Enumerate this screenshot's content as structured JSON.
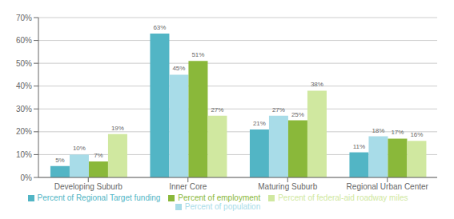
{
  "chart_data": {
    "type": "bar",
    "categories": [
      "Developing Suburb",
      "Inner Core",
      "Maturing Suburb",
      "Regional Urban Center"
    ],
    "series": [
      {
        "name": "Percent of Regional Target funding",
        "color": "#52b5c5",
        "values": [
          5,
          63,
          21,
          11
        ],
        "value_labels": [
          "5%",
          "63%",
          "21%",
          "11%"
        ]
      },
      {
        "name": "Percent of population",
        "color": "#a8dce8",
        "values": [
          10,
          45,
          27,
          18
        ],
        "value_labels": [
          "10%",
          "45%",
          "27%",
          "18%"
        ]
      },
      {
        "name": "Percent of employment",
        "color": "#8ab83a",
        "values": [
          7,
          51,
          25,
          17
        ],
        "value_labels": [
          "7%",
          "51%",
          "25%",
          "17%"
        ]
      },
      {
        "name": "Percent of federal-aid roadway miles",
        "color": "#d0e8a0",
        "values": [
          19,
          27,
          38,
          16
        ],
        "value_labels": [
          "19%",
          "27%",
          "38%",
          "16%"
        ]
      }
    ],
    "ylim": [
      0,
      70
    ],
    "yticks": [
      {
        "value": 0,
        "label": "0%"
      },
      {
        "value": 10,
        "label": "10%"
      },
      {
        "value": 20,
        "label": "20%"
      },
      {
        "value": 30,
        "label": "30%"
      },
      {
        "value": 40,
        "label": "40%"
      },
      {
        "value": 50,
        "label": "50%"
      },
      {
        "value": 60,
        "label": "60%"
      },
      {
        "value": 70,
        "label": "70%"
      }
    ],
    "grid": true,
    "data_labels": true,
    "legend": "bottom"
  }
}
